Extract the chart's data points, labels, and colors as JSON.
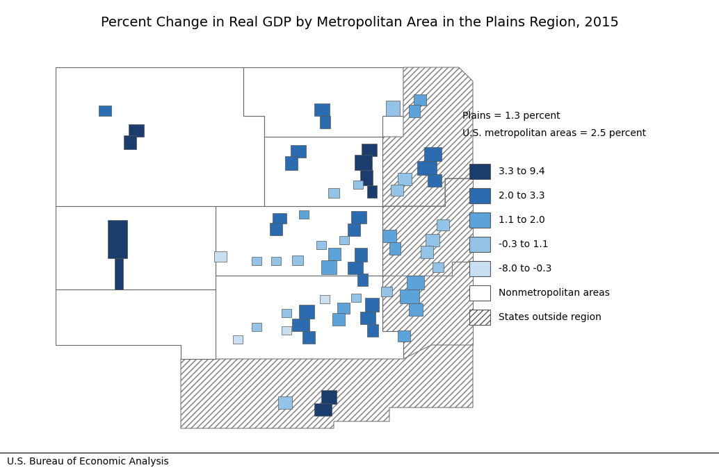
{
  "title": "Percent Change in Real GDP by Metropolitan Area in the Plains Region, 2015",
  "subtitle_line1": "Plains = 1.3 percent",
  "subtitle_line2": "U.S. metropolitan areas = 2.5 percent",
  "footer": "U.S. Bureau of Economic Analysis",
  "legend_labels": [
    "3.3 to 9.4",
    "2.0 to 3.3",
    "1.1 to 2.0",
    "-0.3 to 1.1",
    "-8.0 to -0.3",
    "Nonmetropolitan areas",
    "States outside region"
  ],
  "color_dark_blue": "#1a3d6e",
  "color_med_blue": "#2b6cb0",
  "color_light_blue": "#5ba3d9",
  "color_lighter_blue": "#93c4e8",
  "color_lightest_blue": "#c9dff2",
  "color_white": "#ffffff",
  "color_border": "#888888",
  "background_color": "#ffffff",
  "title_fontsize": 14,
  "legend_fontsize": 10,
  "footer_fontsize": 10
}
